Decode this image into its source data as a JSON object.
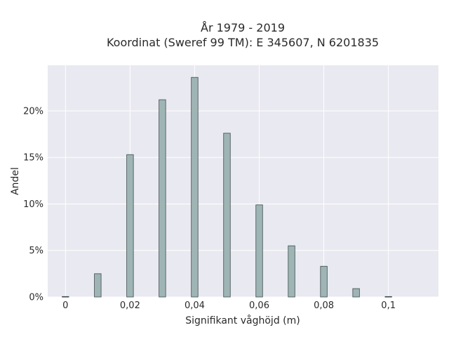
{
  "title_line1": "År 1979 - 2019",
  "title_line2": "Koordinat (Sweref 99 TM): E 345607, N 6201835",
  "chart_data": {
    "type": "bar",
    "title": "År 1979 - 2019\nKoordinat (Sweref 99 TM): E 345607, N 6201835",
    "xlabel": "Signifikant våghöjd (m)",
    "ylabel": "Andel",
    "x": [
      0,
      0.01,
      0.02,
      0.03,
      0.04,
      0.05,
      0.06,
      0.07,
      0.08,
      0.09,
      0.1
    ],
    "values": [
      0.05,
      2.5,
      15.3,
      21.2,
      23.6,
      17.6,
      9.9,
      5.5,
      3.3,
      0.9,
      0.05
    ],
    "value_unit": "%",
    "xlim": [
      -0.0055,
      0.1155
    ],
    "ylim": [
      0,
      24.9
    ],
    "x_ticks": [
      0,
      0.02,
      0.04,
      0.06,
      0.08,
      0.1
    ],
    "x_tick_labels": [
      "0",
      "0,02",
      "0,04",
      "0,06",
      "0,08",
      "0,1"
    ],
    "y_ticks": [
      0,
      5,
      10,
      15,
      20
    ],
    "y_tick_labels": [
      "0%",
      "5%",
      "10%",
      "15%",
      "20%"
    ],
    "grid": true,
    "colors": {
      "bar_fill": "#9fb5b5",
      "bar_stroke": "#3d4b4b",
      "plot_background": "#e9e9f1",
      "grid": "#ffffff"
    }
  }
}
